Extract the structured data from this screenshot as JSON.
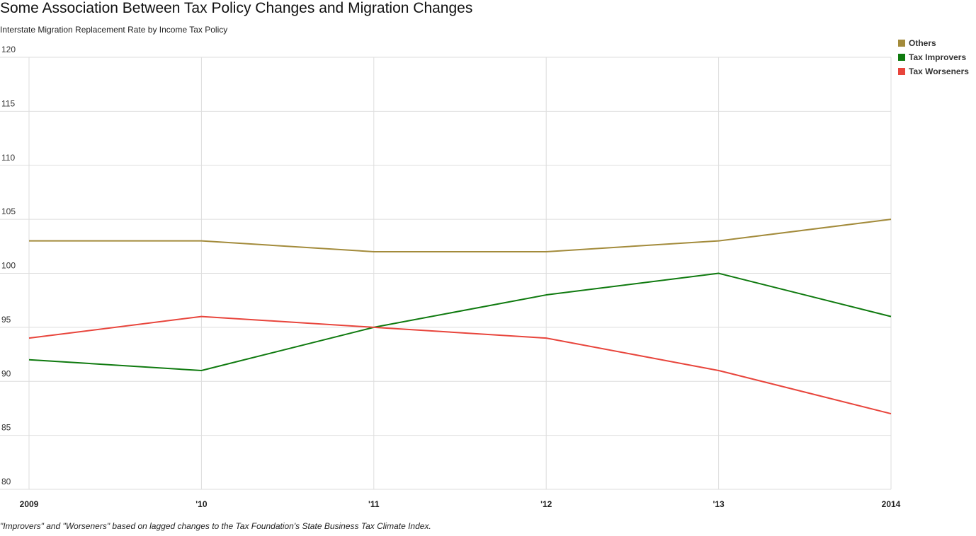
{
  "title": "Some Association Between Tax Policy Changes and Migration Changes",
  "subtitle": "Interstate Migration Replacement Rate by Income Tax Policy",
  "footnote": "\"Improvers\" and \"Worseners\" based on lagged changes to the Tax Foundation's State Business Tax Climate Index.",
  "colors": {
    "grid": "#dddddd",
    "axis": "#cccccc"
  },
  "chart_data": {
    "type": "line",
    "x": [
      "2009",
      "'10",
      "'11",
      "'12",
      "'13",
      "2014"
    ],
    "ylim": [
      80,
      120
    ],
    "yticks": [
      "80",
      "85",
      "90",
      "95",
      "100",
      "105",
      "110",
      "115",
      "120"
    ],
    "grid": true,
    "legend_position": "top-right",
    "series": [
      {
        "name": "Others",
        "color": "#a38b3b",
        "values": [
          103,
          103,
          102,
          102,
          103,
          105
        ]
      },
      {
        "name": "Tax Improvers",
        "color": "#0f7a0f",
        "values": [
          92,
          91,
          95,
          98,
          100,
          96
        ]
      },
      {
        "name": "Tax Worseners",
        "color": "#e8453c",
        "values": [
          94,
          96,
          95,
          94,
          91,
          87
        ]
      }
    ]
  }
}
